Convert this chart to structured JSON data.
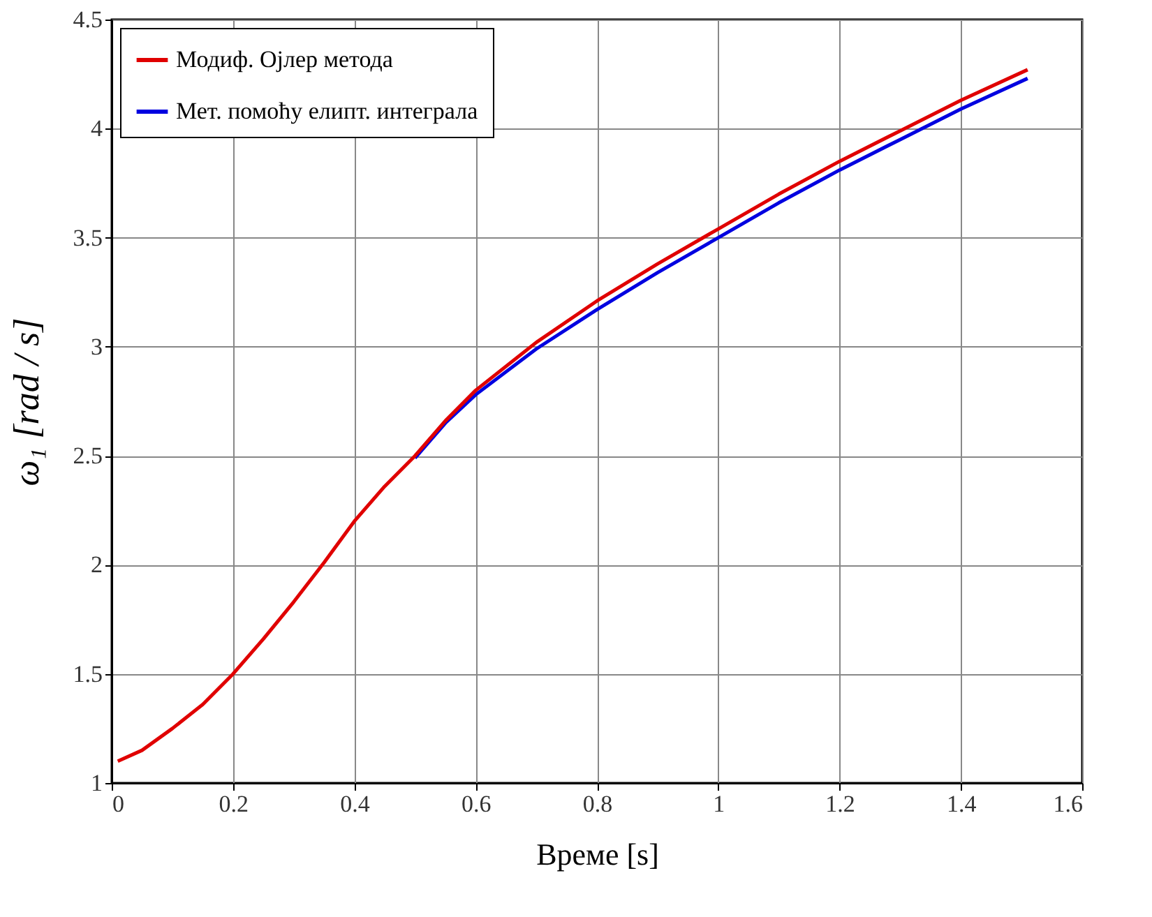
{
  "chart_data": {
    "type": "line",
    "xlabel": "Време [s]",
    "ylabel": "ω₁ [rad / s]",
    "xlim": [
      0,
      1.6
    ],
    "xticks": [
      0,
      0.2,
      0.4,
      0.6,
      0.8,
      1,
      1.2,
      1.4,
      1.6
    ],
    "ylim": [
      1,
      4.5
    ],
    "yticks": [
      1,
      1.5,
      2,
      2.5,
      3,
      3.5,
      4,
      4.5
    ],
    "grid": true,
    "legend": "top left",
    "line_style": "solid",
    "marker": "none",
    "series": [
      {
        "name": "Модиф. Ојлер метода",
        "color": "#e00000",
        "x": [
          0.01,
          0.05,
          0.1,
          0.15,
          0.2,
          0.25,
          0.3,
          0.35,
          0.4,
          0.45,
          0.5,
          0.55,
          0.6,
          0.7,
          0.8,
          0.9,
          1.0,
          1.1,
          1.2,
          1.3,
          1.4,
          1.51
        ],
        "values": [
          1.1,
          1.15,
          1.25,
          1.36,
          1.5,
          1.66,
          1.83,
          2.01,
          2.2,
          2.36,
          2.5,
          2.66,
          2.8,
          3.02,
          3.21,
          3.38,
          3.54,
          3.7,
          3.85,
          3.99,
          4.13,
          4.27
        ]
      },
      {
        "name": "Мет. помоћу елипт. интеграла",
        "color": "#0000e0",
        "x": [
          0.5,
          0.55,
          0.6,
          0.7,
          0.8,
          0.9,
          1.0,
          1.1,
          1.2,
          1.3,
          1.4,
          1.51
        ],
        "values": [
          2.49,
          2.65,
          2.78,
          2.99,
          3.17,
          3.34,
          3.5,
          3.66,
          3.81,
          3.95,
          4.09,
          4.23
        ]
      }
    ]
  }
}
